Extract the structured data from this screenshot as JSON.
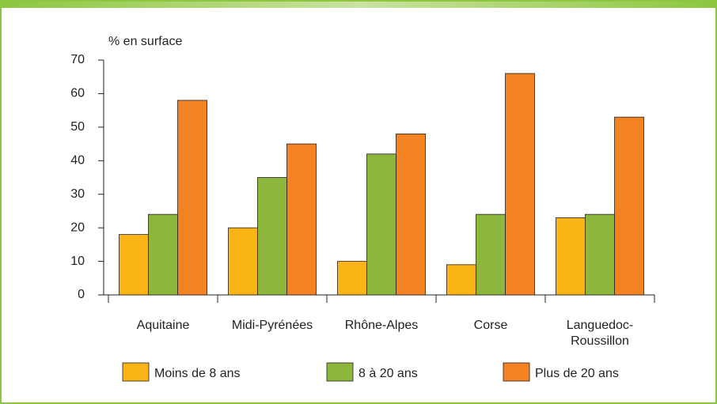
{
  "chart_data": {
    "type": "bar",
    "y_label": "% en surface",
    "categories": [
      "Aquitaine",
      "Midi-Pyrénées",
      "Rhône-Alpes",
      "Corse",
      "Languedoc-Roussillon"
    ],
    "series": [
      {
        "name": "Moins de 8 ans",
        "color": "#fbb416",
        "values": [
          18,
          20,
          10,
          9,
          23
        ]
      },
      {
        "name": "8 à 20 ans",
        "color": "#8db63c",
        "values": [
          24,
          35,
          42,
          24,
          24
        ]
      },
      {
        "name": "Plus de 20 ans",
        "color": "#f28222",
        "values": [
          58,
          45,
          48,
          66,
          53
        ]
      }
    ],
    "ylim": [
      0,
      70
    ],
    "yticks": [
      0,
      10,
      20,
      30,
      40,
      50,
      60,
      70
    ]
  }
}
